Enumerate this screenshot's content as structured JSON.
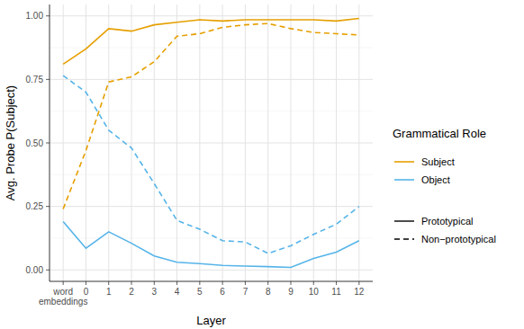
{
  "chart_data": {
    "type": "line",
    "x_label": "Layer",
    "y_label": "Avg. Probe P(Subject)",
    "legend_title": "Grammatical Role",
    "legend": "right",
    "grid": true,
    "line_style_labels": {
      "solid": "Prototypical",
      "dashed": "Non−prototypical"
    },
    "categories": [
      "word embeddings",
      "0",
      "1",
      "2",
      "3",
      "4",
      "5",
      "6",
      "7",
      "8",
      "9",
      "10",
      "11",
      "12"
    ],
    "ylim": [
      -0.045,
      1.045
    ],
    "yticks": [
      {
        "value": 0,
        "label": "0.00"
      },
      {
        "value": 0.25,
        "label": "0.25"
      },
      {
        "value": 0.5,
        "label": "0.50"
      },
      {
        "value": 0.75,
        "label": "0.75"
      },
      {
        "value": 1,
        "label": "1.00"
      }
    ],
    "series": [
      {
        "name": "Subject",
        "color": "#E69F00",
        "line_style": "solid",
        "values": [
          0.81,
          0.87,
          0.95,
          0.94,
          0.965,
          0.975,
          0.985,
          0.98,
          0.985,
          0.985,
          0.985,
          0.985,
          0.98,
          0.99
        ]
      },
      {
        "name": "Subject",
        "color": "#E69F00",
        "line_style": "dashed",
        "values": [
          0.24,
          0.47,
          0.74,
          0.76,
          0.82,
          0.92,
          0.93,
          0.955,
          0.965,
          0.97,
          0.95,
          0.935,
          0.93,
          0.925
        ]
      },
      {
        "name": "Object",
        "color": "#56B4E9",
        "line_style": "solid",
        "values": [
          0.19,
          0.085,
          0.15,
          0.105,
          0.055,
          0.03,
          0.025,
          0.018,
          0.015,
          0.013,
          0.01,
          0.045,
          0.07,
          0.115
        ]
      },
      {
        "name": "Object",
        "color": "#56B4E9",
        "line_style": "dashed",
        "values": [
          0.765,
          0.7,
          0.55,
          0.48,
          0.34,
          0.195,
          0.16,
          0.115,
          0.11,
          0.065,
          0.095,
          0.14,
          0.18,
          0.25
        ]
      }
    ]
  }
}
